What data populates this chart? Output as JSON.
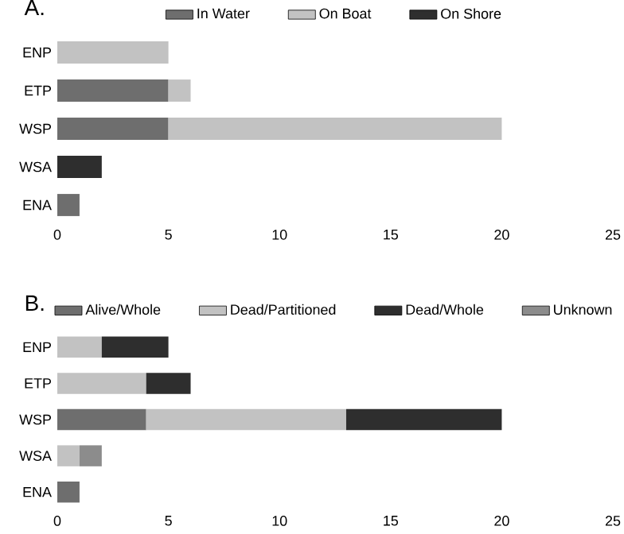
{
  "chart_data": [
    {
      "type": "bar",
      "orientation": "horizontal",
      "stacked": true,
      "title": "A.",
      "categories": [
        "ENP",
        "ETP",
        "WSP",
        "WSA",
        "ENA"
      ],
      "series": [
        {
          "name": "In Water",
          "color": "#6e6e6e",
          "values": [
            0,
            5,
            5,
            0,
            1
          ]
        },
        {
          "name": "On Boat",
          "color": "#c2c2c2",
          "values": [
            5,
            1,
            15,
            0,
            0
          ]
        },
        {
          "name": "On Shore",
          "color": "#2e2e2e",
          "values": [
            0,
            0,
            0,
            2,
            0
          ]
        }
      ],
      "xlim": [
        0,
        25
      ],
      "xticks": [
        0,
        5,
        10,
        15,
        20,
        25
      ],
      "legend": "top",
      "grid": false
    },
    {
      "type": "bar",
      "orientation": "horizontal",
      "stacked": true,
      "title": "B.",
      "categories": [
        "ENP",
        "ETP",
        "WSP",
        "WSA",
        "ENA"
      ],
      "series": [
        {
          "name": "Alive/Whole",
          "color": "#6e6e6e",
          "values": [
            0,
            0,
            4,
            0,
            1
          ]
        },
        {
          "name": "Dead/Partitioned",
          "color": "#c2c2c2",
          "values": [
            2,
            4,
            9,
            1,
            0
          ]
        },
        {
          "name": "Dead/Whole",
          "color": "#2e2e2e",
          "values": [
            3,
            2,
            7,
            0,
            0
          ]
        },
        {
          "name": "Unknown",
          "color": "#8c8c8c",
          "values": [
            0,
            0,
            0,
            1,
            0
          ]
        }
      ],
      "xlim": [
        0,
        25
      ],
      "xticks": [
        0,
        5,
        10,
        15,
        20,
        25
      ],
      "legend": "top",
      "grid": false
    }
  ]
}
